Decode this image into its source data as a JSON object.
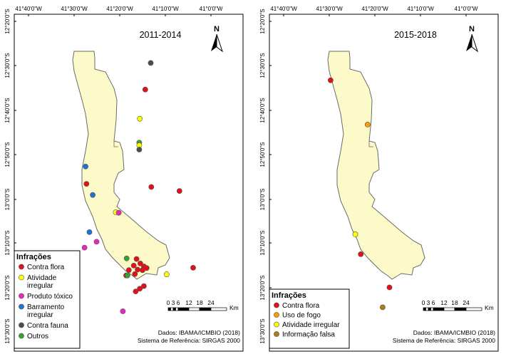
{
  "maps": [
    {
      "id": "left",
      "title": "2011-2014",
      "lon_ticks": [
        "41°40'0\"W",
        "41°30'0\"W",
        "41°20'0\"W",
        "41°10'0\"W",
        "41°0'0\"W"
      ],
      "lat_ticks": [
        "12°20'0\"S",
        "12°30'0\"S",
        "12°40'0\"S",
        "12°50'0\"S",
        "13°0'0\"S",
        "13°10'0\"S",
        "13°20'0\"S",
        "13°30'0\"S"
      ],
      "north_label": "N",
      "scale_labels": [
        "0",
        "3",
        "6",
        "12",
        "18",
        "24"
      ],
      "scale_unit": "Km",
      "credits": [
        "Dados: IBAMA/ICMBIO (2018)",
        "Sistema de Referência: SIRGAS 2000"
      ],
      "legend": {
        "title": "Infrações",
        "items": [
          {
            "label": "Contra flora",
            "color": "#e3101a"
          },
          {
            "label": "Atividade irregular",
            "color": "#ffff00"
          },
          {
            "label": "Produto tóxico",
            "color": "#e62ab8"
          },
          {
            "label": "Barramento irregular",
            "color": "#1b74d6"
          },
          {
            "label": "Contra fauna",
            "color": "#4d4d4d"
          },
          {
            "label": "Outros",
            "color": "#3aa02e"
          }
        ]
      },
      "points": [
        {
          "type": "Contra fauna",
          "lon": -41.22,
          "lat": -12.49
        },
        {
          "type": "Contra flora",
          "lon": -41.24,
          "lat": -12.59
        },
        {
          "type": "Atividade irregular",
          "lon": -41.26,
          "lat": -12.7
        },
        {
          "type": "Outros",
          "lon": -41.262,
          "lat": -12.79
        },
        {
          "type": "Atividade irregular",
          "lon": -41.262,
          "lat": -12.8
        },
        {
          "type": "Contra fauna",
          "lon": -41.262,
          "lat": -12.816
        },
        {
          "type": "Contra flora",
          "lon": -41.218,
          "lat": -12.957
        },
        {
          "type": "Contra flora",
          "lon": -41.115,
          "lat": -12.972
        },
        {
          "type": "Barramento irregular",
          "lon": -41.458,
          "lat": -12.88
        },
        {
          "type": "Contra flora",
          "lon": -41.455,
          "lat": -12.945
        },
        {
          "type": "Barramento irregular",
          "lon": -41.432,
          "lat": -12.987
        },
        {
          "type": "Atividade irregular",
          "lon": -41.348,
          "lat": -13.052
        },
        {
          "type": "Produto tóxico",
          "lon": -41.337,
          "lat": -13.054
        },
        {
          "type": "Barramento irregular",
          "lon": -41.444,
          "lat": -13.127
        },
        {
          "type": "Produto tóxico",
          "lon": -41.418,
          "lat": -13.163
        },
        {
          "type": "Produto tóxico",
          "lon": -41.462,
          "lat": -13.185
        },
        {
          "type": "Outros",
          "lon": -41.308,
          "lat": -13.226
        },
        {
          "type": "Contra flora",
          "lon": -41.272,
          "lat": -13.228
        },
        {
          "type": "Contra flora",
          "lon": -41.258,
          "lat": -13.245
        },
        {
          "type": "Contra flora",
          "lon": -41.282,
          "lat": -13.253
        },
        {
          "type": "Contra flora",
          "lon": -41.245,
          "lat": -13.256
        },
        {
          "type": "Contra flora",
          "lon": -41.268,
          "lat": -13.268
        },
        {
          "type": "Contra flora",
          "lon": -41.25,
          "lat": -13.27
        },
        {
          "type": "Contra flora",
          "lon": -41.235,
          "lat": -13.262
        },
        {
          "type": "Contra flora",
          "lon": -41.3,
          "lat": -13.27
        },
        {
          "type": "Contra flora",
          "lon": -41.278,
          "lat": -13.285
        },
        {
          "type": "Contra flora",
          "lon": -41.31,
          "lat": -13.29
        },
        {
          "type": "Outros",
          "lon": -41.305,
          "lat": -13.29
        },
        {
          "type": "Contra flora",
          "lon": -41.245,
          "lat": -13.33
        },
        {
          "type": "Contra flora",
          "lon": -41.26,
          "lat": -13.34
        },
        {
          "type": "Contra flora",
          "lon": -41.275,
          "lat": -13.35
        },
        {
          "type": "Atividade irregular",
          "lon": -41.162,
          "lat": -13.286
        },
        {
          "type": "Contra flora",
          "lon": -41.065,
          "lat": -13.261
        },
        {
          "type": "Produto tóxico",
          "lon": -41.322,
          "lat": -13.425
        }
      ]
    },
    {
      "id": "right",
      "title": "2015-2018",
      "lon_ticks": [
        "41°40'0\"W",
        "41°30'0\"W",
        "41°20'0\"W",
        "41°10'0\"W",
        "41°0'0\"W"
      ],
      "lat_ticks": [
        "12°20'0\"S",
        "12°30'0\"S",
        "12°40'0\"S",
        "12°50'0\"S",
        "13°0'0\"S",
        "13°10'0\"S",
        "13°20'0\"S",
        "13°30'0\"S"
      ],
      "north_label": "N",
      "scale_labels": [
        "0",
        "3",
        "6",
        "12",
        "18",
        "24"
      ],
      "scale_unit": "Km",
      "credits": [
        "Dados: IBAMA/ICMBIO (2018)",
        "Sistema de Referência: SIRGAS 2000"
      ],
      "legend": {
        "title": "Infrações",
        "items": [
          {
            "label": "Contra flora",
            "color": "#e3101a"
          },
          {
            "label": "Uso de fogo",
            "color": "#ff9a00"
          },
          {
            "label": "Atividade irregular",
            "color": "#ffff00"
          },
          {
            "label": "Informação falsa",
            "color": "#b07a18"
          }
        ]
      },
      "points": [
        {
          "type": "Contra flora",
          "lon": -41.495,
          "lat": -12.555
        },
        {
          "type": "Uso de fogo",
          "lon": -41.36,
          "lat": -12.722
        },
        {
          "type": "Atividade irregular",
          "lon": -41.405,
          "lat": -13.135
        },
        {
          "type": "Contra flora",
          "lon": -41.385,
          "lat": -13.21
        },
        {
          "type": "Contra flora",
          "lon": -41.28,
          "lat": -13.335
        },
        {
          "type": "Informação falsa",
          "lon": -41.305,
          "lat": -13.41
        }
      ]
    }
  ]
}
